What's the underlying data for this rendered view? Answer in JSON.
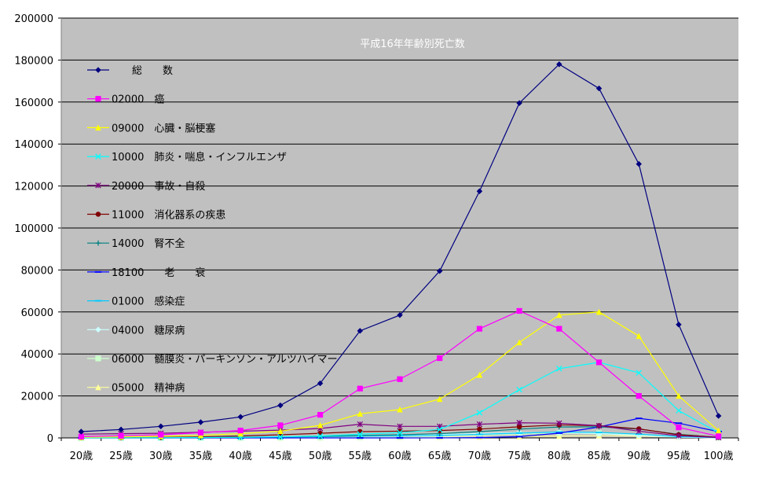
{
  "chart_data": {
    "type": "line",
    "title": "平成16年年齢別死亡数",
    "xlabel": "",
    "ylabel": "",
    "ylim": [
      0,
      200000
    ],
    "yticks": [
      "0",
      "20000",
      "40000",
      "60000",
      "80000",
      "100000",
      "120000",
      "140000",
      "160000",
      "180000",
      "200000"
    ],
    "categories": [
      "20歳",
      "25歳",
      "30歳",
      "35歳",
      "40歳",
      "45歳",
      "50歳",
      "55歳",
      "60歳",
      "65歳",
      "70歳",
      "75歳",
      "80歳",
      "85歳",
      "90歳",
      "95歳",
      "100歳"
    ],
    "grid": true,
    "legend_position": "left",
    "plot_background": "#c0c0c0",
    "series": [
      {
        "name": "　　総　　数",
        "color": "#000080",
        "marker": "diamond",
        "values": [
          3000,
          4000,
          5500,
          7500,
          10000,
          15500,
          26000,
          51000,
          58500,
          79500,
          117500,
          159500,
          178000,
          166500,
          130500,
          54000,
          10500
        ]
      },
      {
        "name": "02000　癌",
        "color": "#ff00ff",
        "marker": "square",
        "values": [
          600,
          1000,
          1500,
          2500,
          3500,
          6000,
          11000,
          23500,
          28000,
          38000,
          52000,
          60500,
          52000,
          36000,
          20000,
          5000,
          800
        ]
      },
      {
        "name": "09000　心臓・脳梗塞",
        "color": "#ffff00",
        "marker": "triangle",
        "values": [
          300,
          500,
          800,
          1200,
          2000,
          3200,
          6000,
          11500,
          13500,
          18500,
          30000,
          45500,
          58500,
          60000,
          48500,
          20000,
          3500
        ]
      },
      {
        "name": "10000　肺炎・喘息・インフルエンザ",
        "color": "#00ffff",
        "marker": "x",
        "values": [
          50,
          80,
          120,
          200,
          300,
          500,
          900,
          1800,
          2500,
          4000,
          12000,
          23000,
          33000,
          36000,
          31000,
          13000,
          2500
        ]
      },
      {
        "name": "20000　事故・自殺",
        "color": "#800080",
        "marker": "star",
        "values": [
          1800,
          2000,
          2200,
          2700,
          3200,
          3700,
          4500,
          6500,
          5500,
          5500,
          6500,
          7200,
          7000,
          5800,
          3200,
          1000,
          200
        ]
      },
      {
        "name": "11000　消化器系の疾患",
        "color": "#800000",
        "marker": "dot",
        "values": [
          100,
          150,
          250,
          500,
          900,
          1500,
          2200,
          3000,
          3200,
          3500,
          4200,
          5300,
          6200,
          5800,
          4300,
          1500,
          300
        ]
      },
      {
        "name": "14000　腎不全",
        "color": "#008080",
        "marker": "plus",
        "values": [
          50,
          80,
          100,
          150,
          250,
          400,
          700,
          1200,
          1500,
          2000,
          3000,
          4200,
          5200,
          5300,
          4200,
          1700,
          300
        ]
      },
      {
        "name": "18100　　老　　衰",
        "color": "#0000ff",
        "marker": "dash",
        "values": [
          0,
          0,
          0,
          0,
          0,
          0,
          0,
          0,
          10,
          30,
          150,
          600,
          2300,
          5200,
          9300,
          7000,
          3000
        ]
      },
      {
        "name": "01000　感染症",
        "color": "#00ccff",
        "marker": "dash",
        "values": [
          50,
          80,
          150,
          250,
          350,
          450,
          600,
          900,
          1000,
          1200,
          1700,
          2300,
          2800,
          2600,
          1800,
          600,
          100
        ]
      },
      {
        "name": "04000　糖尿病",
        "color": "#ccffff",
        "marker": "diamond",
        "values": [
          30,
          50,
          80,
          150,
          250,
          450,
          700,
          1100,
          1300,
          1600,
          2100,
          2500,
          2600,
          2000,
          1200,
          300,
          50
        ]
      },
      {
        "name": "06000　髄膜炎・パーキンソン・アルツハイマー",
        "color": "#ccffcc",
        "marker": "square",
        "values": [
          10,
          10,
          20,
          30,
          50,
          80,
          120,
          250,
          400,
          700,
          1200,
          1800,
          2300,
          2200,
          1500,
          500,
          80
        ]
      },
      {
        "name": "05000　精神病",
        "color": "#ffff99",
        "marker": "triangle",
        "values": [
          30,
          40,
          50,
          60,
          80,
          100,
          150,
          200,
          250,
          300,
          400,
          600,
          900,
          1100,
          900,
          400,
          80
        ]
      }
    ]
  }
}
